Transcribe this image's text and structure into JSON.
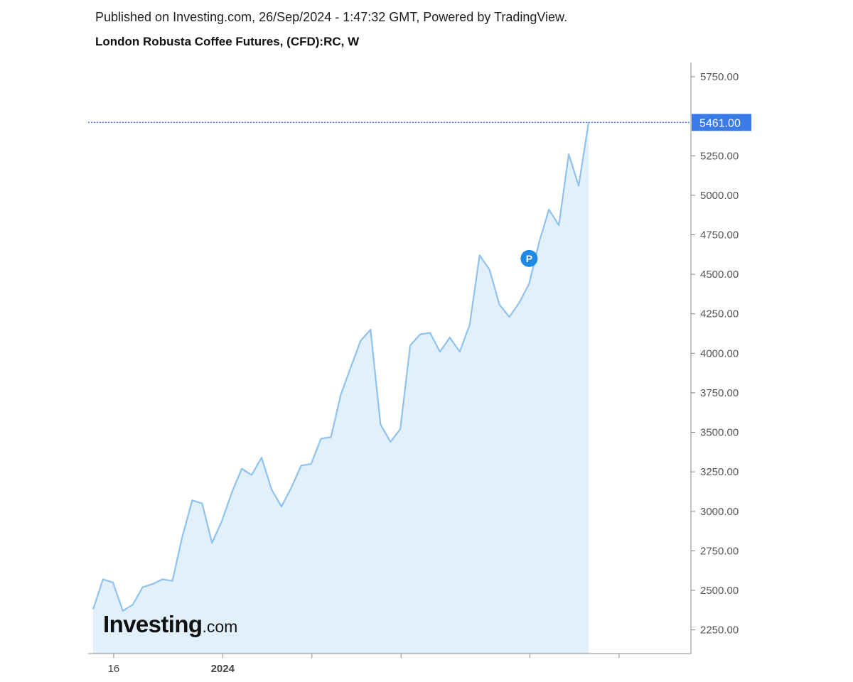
{
  "header": {
    "published": "Published on Investing.com, 26/Sep/2024 - 1:47:32 GMT, Powered by TradingView.",
    "title": "London Robusta Coffee Futures, (CFD):RC, W"
  },
  "logo": {
    "main": "Investing",
    "suffix": ".com"
  },
  "price_marker": {
    "label": "P"
  },
  "chart_data": {
    "type": "area",
    "title": "London Robusta Coffee Futures, (CFD):RC, W",
    "xlabel": "",
    "ylabel": "",
    "ylim": [
      2100,
      5840
    ],
    "y_ticks": [
      {
        "value": 2250,
        "label": "2250.00"
      },
      {
        "value": 2500,
        "label": "2500.00"
      },
      {
        "value": 2750,
        "label": "2750.00"
      },
      {
        "value": 3000,
        "label": "3000.00"
      },
      {
        "value": 3250,
        "label": "3250.00"
      },
      {
        "value": 3500,
        "label": "3500.00"
      },
      {
        "value": 3750,
        "label": "3750.00"
      },
      {
        "value": 4000,
        "label": "4000.00"
      },
      {
        "value": 4250,
        "label": "4250.00"
      },
      {
        "value": 4500,
        "label": "4500.00"
      },
      {
        "value": 4750,
        "label": "4750.00"
      },
      {
        "value": 5000,
        "label": "5000.00"
      },
      {
        "value": 5250,
        "label": "5250.00"
      },
      {
        "value": 5750,
        "label": "5750.00"
      }
    ],
    "x_ticks": [
      {
        "index": 1,
        "label": "16"
      },
      {
        "index": 12,
        "label": "2024"
      },
      {
        "index": 21,
        "label": ""
      },
      {
        "index": 30,
        "label": ""
      },
      {
        "index": 43,
        "label": ""
      },
      {
        "index": 52,
        "label": ""
      }
    ],
    "x_axis_extent": [
      -0.5,
      60.5
    ],
    "last_value": {
      "value": 5461,
      "label": "5461.00"
    },
    "marker": {
      "index": 44,
      "value": 4600,
      "label": "P"
    },
    "colors": {
      "line": "#90c2ef",
      "fill": "#e1f0fa",
      "last": "#3b7be8",
      "axis": "#888888"
    },
    "grid": false,
    "series": [
      {
        "values": [
          2380,
          2570,
          2550,
          2370,
          2410,
          2520,
          2540,
          2570,
          2560,
          2840,
          3070,
          3050,
          2800,
          2940,
          3120,
          3270,
          3230,
          3340,
          3140,
          3030,
          3150,
          3290,
          3300,
          3460,
          3470,
          3740,
          3910,
          4080,
          4150,
          3550,
          3440,
          3520,
          4050,
          4120,
          4130,
          4010,
          4100,
          4010,
          4180,
          4620,
          4530,
          4310,
          4230,
          4320,
          4440,
          4700,
          4910,
          4810,
          5260,
          5060,
          5461
        ]
      }
    ]
  }
}
